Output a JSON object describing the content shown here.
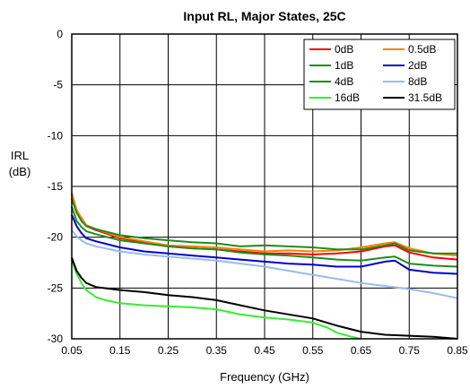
{
  "chart_data": {
    "type": "line",
    "title": "Input RL, Major States, 25C",
    "xlabel": "Frequency (GHz)",
    "ylabel_lines": [
      "IRL",
      "(dB)"
    ],
    "xlim": [
      0.05,
      0.85
    ],
    "ylim": [
      -30,
      0
    ],
    "xticks": [
      0.05,
      0.15,
      0.25,
      0.35,
      0.45,
      0.55,
      0.65,
      0.75,
      0.85
    ],
    "yticks": [
      0,
      -5,
      -10,
      -15,
      -20,
      -25,
      -30
    ],
    "grid": true,
    "legend_position": "top-right",
    "series": [
      {
        "name": "0dB",
        "color": "#ff0000",
        "x": [
          0.05,
          0.06,
          0.07,
          0.08,
          0.1,
          0.15,
          0.2,
          0.25,
          0.3,
          0.35,
          0.4,
          0.45,
          0.5,
          0.55,
          0.6,
          0.65,
          0.7,
          0.72,
          0.75,
          0.8,
          0.85
        ],
        "y": [
          -15.8,
          -17.4,
          -18.2,
          -18.9,
          -19.3,
          -20.1,
          -20.5,
          -20.9,
          -21.1,
          -21.2,
          -21.4,
          -21.6,
          -21.6,
          -21.7,
          -21.6,
          -21.4,
          -20.9,
          -20.8,
          -21.5,
          -22.0,
          -22.2
        ]
      },
      {
        "name": "0.5dB",
        "color": "#ff8000",
        "x": [
          0.05,
          0.06,
          0.07,
          0.08,
          0.1,
          0.15,
          0.2,
          0.25,
          0.3,
          0.35,
          0.4,
          0.45,
          0.5,
          0.55,
          0.6,
          0.65,
          0.7,
          0.72,
          0.75,
          0.8,
          0.85
        ],
        "y": [
          -15.6,
          -17.3,
          -18.1,
          -18.8,
          -19.2,
          -20.0,
          -20.4,
          -20.8,
          -20.9,
          -21.0,
          -21.2,
          -21.4,
          -21.3,
          -21.4,
          -21.3,
          -21.0,
          -20.6,
          -20.5,
          -21.1,
          -21.6,
          -21.8
        ]
      },
      {
        "name": "1dB",
        "color": "#1e8c1e",
        "x": [
          0.05,
          0.06,
          0.07,
          0.08,
          0.1,
          0.15,
          0.2,
          0.25,
          0.3,
          0.35,
          0.4,
          0.45,
          0.5,
          0.55,
          0.6,
          0.65,
          0.7,
          0.72,
          0.75,
          0.8,
          0.85
        ],
        "y": [
          -16.2,
          -17.6,
          -18.4,
          -18.9,
          -19.2,
          -19.8,
          -20.1,
          -20.3,
          -20.5,
          -20.6,
          -20.9,
          -20.8,
          -20.9,
          -21.0,
          -21.2,
          -21.2,
          -20.8,
          -20.6,
          -21.3,
          -21.6,
          -21.6
        ]
      },
      {
        "name": "2dB",
        "color": "#0000cc",
        "x": [
          0.05,
          0.06,
          0.07,
          0.08,
          0.1,
          0.15,
          0.2,
          0.25,
          0.3,
          0.35,
          0.4,
          0.45,
          0.5,
          0.55,
          0.6,
          0.65,
          0.7,
          0.72,
          0.75,
          0.8,
          0.85
        ],
        "y": [
          -17.8,
          -18.9,
          -19.6,
          -20.1,
          -20.4,
          -21.0,
          -21.4,
          -21.6,
          -21.8,
          -22.0,
          -22.2,
          -22.4,
          -22.6,
          -22.7,
          -22.9,
          -22.9,
          -22.4,
          -22.3,
          -23.2,
          -23.5,
          -23.6
        ]
      },
      {
        "name": "4dB",
        "color": "#1e8c1e",
        "x": [
          0.05,
          0.06,
          0.07,
          0.08,
          0.1,
          0.15,
          0.2,
          0.25,
          0.3,
          0.35,
          0.4,
          0.45,
          0.5,
          0.55,
          0.6,
          0.65,
          0.7,
          0.72,
          0.75,
          0.8,
          0.85
        ],
        "y": [
          -17.0,
          -18.4,
          -19.0,
          -19.4,
          -19.7,
          -20.3,
          -20.6,
          -20.9,
          -21.1,
          -21.2,
          -21.5,
          -21.7,
          -21.8,
          -22.0,
          -22.2,
          -22.3,
          -22.0,
          -21.9,
          -22.6,
          -22.8,
          -22.9
        ]
      },
      {
        "name": "8dB",
        "color": "#99bbee",
        "x": [
          0.05,
          0.06,
          0.07,
          0.08,
          0.1,
          0.15,
          0.2,
          0.25,
          0.3,
          0.35,
          0.4,
          0.45,
          0.5,
          0.55,
          0.6,
          0.65,
          0.7,
          0.75,
          0.8,
          0.85
        ],
        "y": [
          -19.3,
          -19.9,
          -20.3,
          -20.6,
          -20.9,
          -21.4,
          -21.7,
          -21.9,
          -22.1,
          -22.3,
          -22.6,
          -22.9,
          -23.3,
          -23.7,
          -24.1,
          -24.5,
          -24.8,
          -25.1,
          -25.5,
          -26.0
        ]
      },
      {
        "name": "16dB",
        "color": "#33ee33",
        "x": [
          0.05,
          0.06,
          0.07,
          0.08,
          0.1,
          0.12,
          0.15,
          0.2,
          0.25,
          0.3,
          0.35,
          0.4,
          0.45,
          0.5,
          0.55,
          0.58,
          0.6,
          0.63,
          0.65
        ],
        "y": [
          -22.2,
          -23.6,
          -24.5,
          -25.2,
          -25.9,
          -26.2,
          -26.5,
          -26.7,
          -26.8,
          -26.9,
          -27.1,
          -27.6,
          -27.9,
          -28.1,
          -28.4,
          -28.9,
          -29.4,
          -29.8,
          -30.0
        ]
      },
      {
        "name": "31.5dB",
        "color": "#000000",
        "x": [
          0.05,
          0.06,
          0.07,
          0.08,
          0.1,
          0.15,
          0.2,
          0.25,
          0.3,
          0.35,
          0.4,
          0.45,
          0.5,
          0.55,
          0.6,
          0.65,
          0.7,
          0.75,
          0.8,
          0.85
        ],
        "y": [
          -22.0,
          -23.3,
          -24.0,
          -24.5,
          -24.9,
          -25.2,
          -25.4,
          -25.7,
          -25.9,
          -26.2,
          -26.7,
          -27.2,
          -27.6,
          -28.0,
          -28.7,
          -29.3,
          -29.6,
          -29.7,
          -29.8,
          -30.0
        ]
      }
    ]
  }
}
